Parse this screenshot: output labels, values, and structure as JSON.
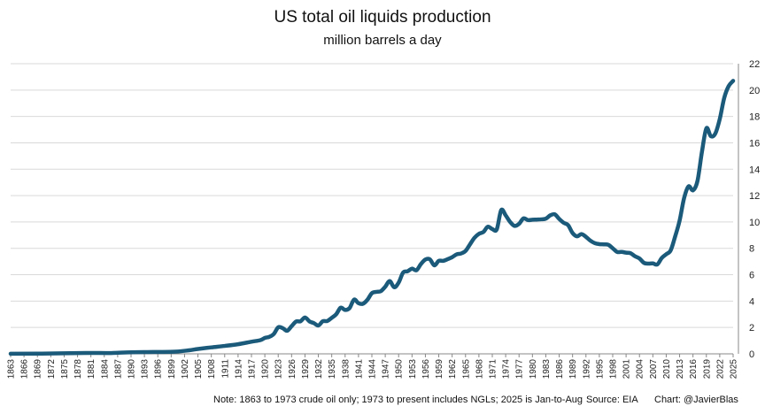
{
  "chart_data": {
    "type": "line",
    "title": "US total oil liquids production",
    "subtitle": "million barrels a day",
    "xlabel": "",
    "ylabel": "",
    "y_axis_side": "right",
    "ylim": [
      0,
      22
    ],
    "yticks": [
      0,
      2,
      4,
      6,
      8,
      10,
      12,
      14,
      16,
      18,
      20,
      22
    ],
    "xlim": [
      1863,
      2025
    ],
    "xticks": [
      "1863",
      "1866",
      "1869",
      "1872",
      "1875",
      "1878",
      "1881",
      "1884",
      "1887",
      "1890",
      "1893",
      "1896",
      "1899",
      "1902",
      "1905",
      "1908",
      "1911",
      "1914",
      "1917",
      "1920",
      "1923",
      "1926",
      "1929",
      "1932",
      "1935",
      "1938",
      "1941",
      "1944",
      "1947",
      "1950",
      "1953",
      "1956",
      "1959",
      "1962",
      "1965",
      "1968",
      "1971",
      "1974",
      "1977",
      "1980",
      "1983",
      "1986",
      "1989",
      "1992",
      "1995",
      "1998",
      "2001",
      "2004",
      "2007",
      "2010",
      "2013",
      "2016",
      "2019",
      "2022",
      "2025"
    ],
    "grid": "horizontal",
    "line_color": "#1b5a7a",
    "series": [
      {
        "name": "",
        "x": [
          1863,
          1870,
          1880,
          1885,
          1890,
          1895,
          1900,
          1903,
          1905,
          1908,
          1911,
          1914,
          1917,
          1919,
          1920,
          1921,
          1922,
          1923,
          1924,
          1925,
          1926,
          1927,
          1928,
          1929,
          1930,
          1931,
          1932,
          1933,
          1934,
          1935,
          1936,
          1937,
          1938,
          1939,
          1940,
          1941,
          1942,
          1943,
          1944,
          1945,
          1946,
          1947,
          1948,
          1949,
          1950,
          1951,
          1952,
          1953,
          1954,
          1955,
          1956,
          1957,
          1958,
          1959,
          1960,
          1961,
          1962,
          1963,
          1964,
          1965,
          1966,
          1967,
          1968,
          1969,
          1970,
          1971,
          1972,
          1973,
          1974,
          1975,
          1976,
          1977,
          1978,
          1979,
          1980,
          1981,
          1982,
          1983,
          1984,
          1985,
          1986,
          1987,
          1988,
          1989,
          1990,
          1991,
          1992,
          1993,
          1994,
          1995,
          1996,
          1997,
          1998,
          1999,
          2000,
          2001,
          2002,
          2003,
          2004,
          2005,
          2006,
          2007,
          2008,
          2009,
          2010,
          2011,
          2012,
          2013,
          2014,
          2015,
          2016,
          2017,
          2018,
          2019,
          2020,
          2021,
          2022,
          2023,
          2024,
          2025
        ],
        "values": [
          0.01,
          0.02,
          0.07,
          0.06,
          0.12,
          0.14,
          0.17,
          0.27,
          0.37,
          0.49,
          0.6,
          0.73,
          0.92,
          1.04,
          1.21,
          1.29,
          1.5,
          2.01,
          1.95,
          1.75,
          2.1,
          2.45,
          2.47,
          2.76,
          2.46,
          2.33,
          2.15,
          2.47,
          2.49,
          2.73,
          3.0,
          3.5,
          3.33,
          3.47,
          4.11,
          3.84,
          3.8,
          4.1,
          4.6,
          4.7,
          4.75,
          5.09,
          5.52,
          5.05,
          5.4,
          6.16,
          6.26,
          6.46,
          6.34,
          6.81,
          7.15,
          7.17,
          6.71,
          7.05,
          7.05,
          7.18,
          7.33,
          7.54,
          7.61,
          7.8,
          8.3,
          8.8,
          9.1,
          9.24,
          9.64,
          9.46,
          9.44,
          10.9,
          10.5,
          10.0,
          9.7,
          9.86,
          10.27,
          10.14,
          10.17,
          10.18,
          10.2,
          10.25,
          10.5,
          10.58,
          10.23,
          9.94,
          9.76,
          9.16,
          8.91,
          9.08,
          8.87,
          8.58,
          8.39,
          8.32,
          8.3,
          8.27,
          8.01,
          7.73,
          7.73,
          7.67,
          7.63,
          7.4,
          7.23,
          6.9,
          6.84,
          6.86,
          6.78,
          7.27,
          7.55,
          7.85,
          8.9,
          10.1,
          11.8,
          12.7,
          12.4,
          13.1,
          15.3,
          17.1,
          16.5,
          16.7,
          17.8,
          19.4,
          20.3,
          20.7
        ]
      }
    ],
    "footer": {
      "note": "Note: 1863 to 1973 crude oil only; 1973 to present includes NGLs; 2025 is Jan-to-Aug",
      "source": "Source: EIA",
      "credit": "Chart: @JavierBlas"
    }
  }
}
